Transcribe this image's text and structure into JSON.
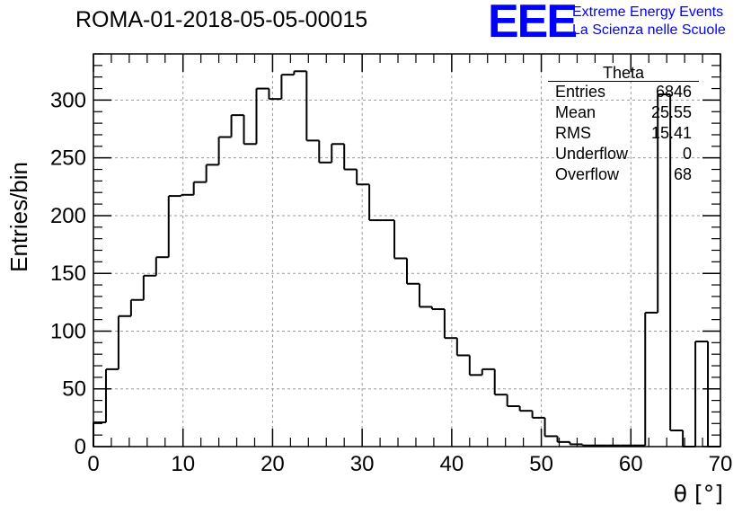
{
  "header": {
    "run_title": "ROMA-01-2018-05-05-00015",
    "logo_text": "EEE",
    "logo_line1": "Extreme Energy Events",
    "logo_line2": "La Scienza nelle Scuole"
  },
  "stats": {
    "title": "Theta",
    "rows": [
      {
        "label": "Entries",
        "value": "6846"
      },
      {
        "label": "Mean",
        "value": "25.55"
      },
      {
        "label": "RMS",
        "value": "15.41"
      },
      {
        "label": "Underflow",
        "value": "0"
      },
      {
        "label": "Overflow",
        "value": "68"
      }
    ]
  },
  "chart_data": {
    "type": "histogram",
    "title": "ROMA-01-2018-05-05-00015",
    "xlabel": "θ [°]",
    "ylabel": "Entries/bin",
    "xlim": [
      0,
      70
    ],
    "ylim": [
      0,
      340
    ],
    "grid": true,
    "bin_width": 1.4,
    "bin_edges_start": 0,
    "values": [
      21,
      67,
      113,
      127,
      148,
      164,
      217,
      218,
      229,
      244,
      268,
      287,
      262,
      310,
      301,
      322,
      325,
      265,
      246,
      262,
      240,
      227,
      196,
      196,
      163,
      141,
      121,
      119,
      94,
      79,
      62,
      67,
      45,
      35,
      31,
      25,
      9,
      4,
      2,
      1,
      1,
      1,
      1,
      1,
      116,
      305,
      14,
      0,
      91,
      0
    ],
    "xticks": [
      0,
      10,
      20,
      30,
      40,
      50,
      60,
      70
    ],
    "yticks": [
      0,
      50,
      100,
      150,
      200,
      250,
      300
    ],
    "colors": {
      "line": "#000000",
      "grid": "#999999",
      "logo": "#0000ff"
    }
  }
}
